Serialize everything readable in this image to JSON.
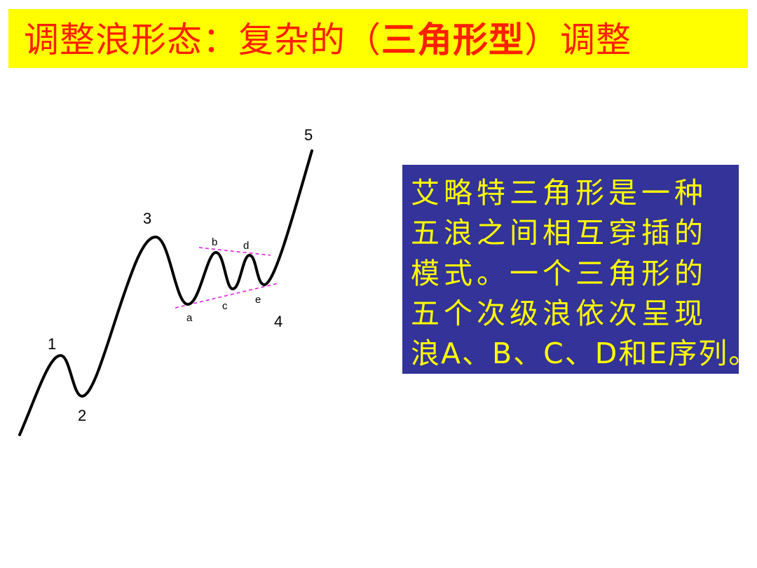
{
  "title": {
    "prefix": "调整浪形态：复杂的（",
    "emphasis": "三角形型",
    "suffix": "）调整"
  },
  "description": {
    "lines": [
      "艾略特三角形是一种",
      "五浪之间相互穿插的",
      "模式。一个三角形的",
      "五个次级浪依次呈现",
      "浪A、B、C、D和E序列。"
    ]
  },
  "diagram": {
    "wave_labels": [
      "1",
      "2",
      "3",
      "4",
      "5"
    ],
    "sub_wave_labels": [
      "a",
      "b",
      "c",
      "d",
      "e"
    ]
  },
  "colors": {
    "title_bg": "#ffff00",
    "title_text": "#ff2000",
    "box_bg": "#333399",
    "box_text": "#ffff00",
    "trendline": "#e020e0"
  }
}
